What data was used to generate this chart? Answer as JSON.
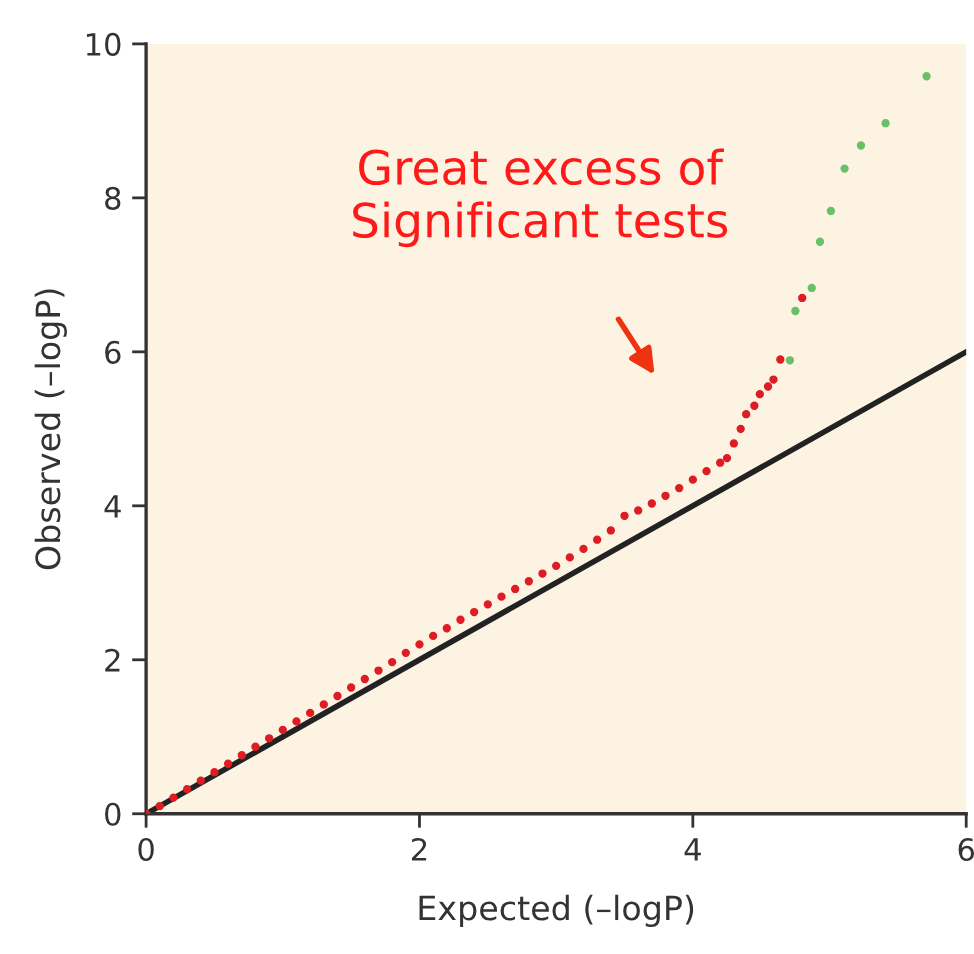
{
  "chart_data": {
    "type": "scatter",
    "xlabel": "Expected (–logP)",
    "ylabel": "Observed (–logP)",
    "annotations": [
      "Great excess of\nSignificant tests"
    ],
    "xlim": [
      0,
      6
    ],
    "ylim": [
      0,
      10
    ],
    "xticks": [
      0,
      2,
      4,
      6
    ],
    "yticks": [
      0,
      2,
      4,
      6,
      8,
      10
    ],
    "grid": false,
    "legend": false,
    "marker": "circle",
    "series": [
      {
        "type": "line",
        "color": "#222222",
        "x": [
          0,
          6
        ],
        "values": [
          0,
          6
        ],
        "marker": "none"
      },
      {
        "color": "#dd1c24",
        "x": [
          0,
          0.1,
          0.2,
          0.3,
          0.4,
          0.5,
          0.6,
          0.7,
          0.8,
          0.9,
          1.0,
          1.1,
          1.2,
          1.3,
          1.4,
          1.5,
          1.6,
          1.7,
          1.8,
          1.9,
          2.0,
          2.1,
          2.2,
          2.3,
          2.4,
          2.5,
          2.6,
          2.7,
          2.8,
          2.9,
          3.0,
          3.1,
          3.2,
          3.3,
          3.4,
          3.5,
          3.6,
          3.7,
          3.8,
          3.9,
          4.0,
          4.1,
          4.2,
          4.25,
          4.3,
          4.35,
          4.39,
          4.45,
          4.49,
          4.55,
          4.59,
          4.64,
          4.8
        ],
        "values": [
          0,
          0.1,
          0.21,
          0.32,
          0.43,
          0.54,
          0.65,
          0.76,
          0.87,
          0.98,
          1.09,
          1.2,
          1.31,
          1.42,
          1.53,
          1.64,
          1.75,
          1.86,
          1.97,
          2.09,
          2.2,
          2.31,
          2.41,
          2.52,
          2.62,
          2.72,
          2.82,
          2.92,
          3.02,
          3.12,
          3.22,
          3.33,
          3.44,
          3.56,
          3.68,
          3.87,
          3.94,
          4.03,
          4.13,
          4.23,
          4.34,
          4.45,
          4.56,
          4.62,
          4.81,
          5.0,
          5.19,
          5.3,
          5.45,
          5.55,
          5.64,
          5.9,
          6.7
        ]
      },
      {
        "color": "#6abf69",
        "x": [
          4.71,
          4.75,
          4.87,
          4.93,
          5.01,
          5.11,
          5.23,
          5.41,
          5.71
        ],
        "values": [
          5.89,
          6.53,
          6.83,
          7.43,
          7.83,
          8.38,
          8.68,
          8.97,
          9.58
        ]
      }
    ]
  }
}
